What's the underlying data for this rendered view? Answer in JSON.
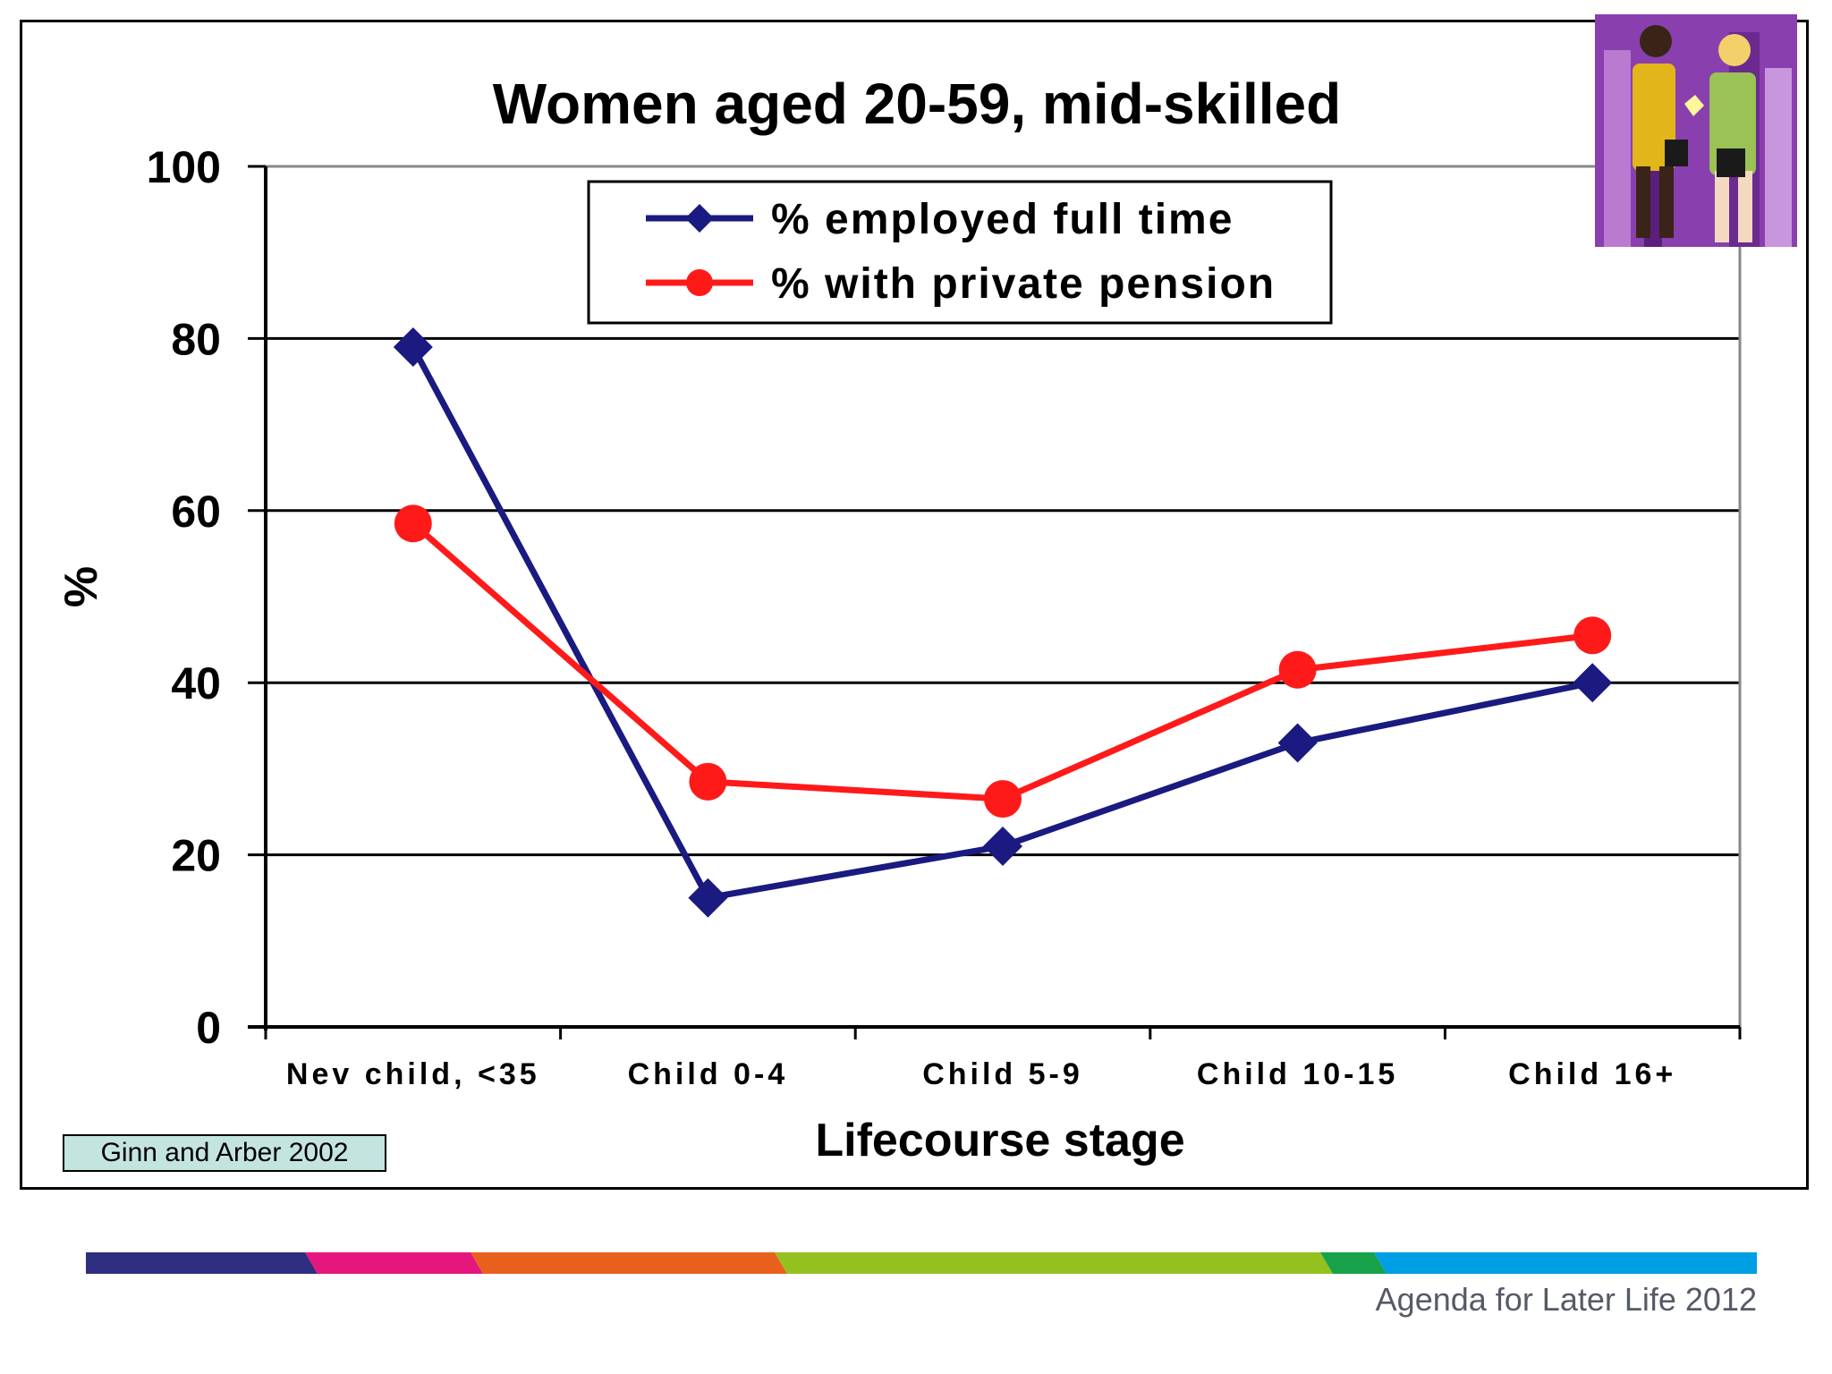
{
  "chart_data": {
    "type": "line",
    "title": "Women aged 20-59, mid-skilled",
    "xlabel": "Lifecourse stage",
    "ylabel": "%",
    "categories": [
      "Nev child, <35",
      "Child 0-4",
      "Child 5-9",
      "Child 10-15",
      "Child 16+"
    ],
    "ylim": [
      0,
      100
    ],
    "yticks": [
      0,
      20,
      40,
      60,
      80,
      100
    ],
    "grid": true,
    "legend_position": "top-center",
    "series": [
      {
        "name": "% employed full time",
        "values": [
          79,
          15,
          21,
          33,
          40
        ],
        "color": "#1a1a80",
        "marker": "diamond"
      },
      {
        "name": "% with private pension",
        "values": [
          58.5,
          28.5,
          26.5,
          41.5,
          45.5
        ],
        "color": "#ff1a1a",
        "marker": "circle"
      }
    ]
  },
  "source_note": "Ginn and Arber 2002",
  "footer": {
    "text": "Agenda for Later Life 2012",
    "stripe_colors": [
      "#2e2f80",
      "#e5177e",
      "#e8601c",
      "#95c11f",
      "#17a24a",
      "#009fe3"
    ]
  }
}
